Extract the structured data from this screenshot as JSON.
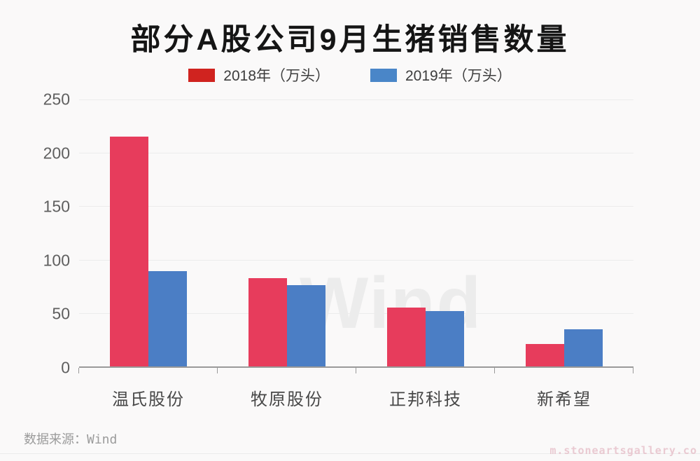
{
  "title": "部分A股公司9月生猪销售数量",
  "legend": {
    "items": [
      {
        "label": "2018年（万头）",
        "swatch_color": "#d0231f"
      },
      {
        "label": "2019年（万头）",
        "swatch_color": "#4a86c8"
      }
    ]
  },
  "chart_data": {
    "type": "bar",
    "title": "部分A股公司9月生猪销售数量",
    "categories": [
      "温氏股份",
      "牧原股份",
      "正邦科技",
      "新希望"
    ],
    "series": [
      {
        "name": "2018年（万头）",
        "color": "#e73c5c",
        "values": [
          215,
          83,
          55,
          21
        ]
      },
      {
        "name": "2019年（万头）",
        "color": "#4b7ec5",
        "values": [
          89,
          76,
          52,
          35
        ]
      }
    ],
    "xlabel": "",
    "ylabel": "",
    "ylim": [
      0,
      250
    ],
    "yticks": [
      250,
      200,
      150,
      100,
      50,
      0
    ],
    "grid": true,
    "legend_position": "top"
  },
  "watermarks": {
    "center": "Wind",
    "bottom_right": "m.stoneartsgallery.co"
  },
  "source": "数据来源：Wind"
}
